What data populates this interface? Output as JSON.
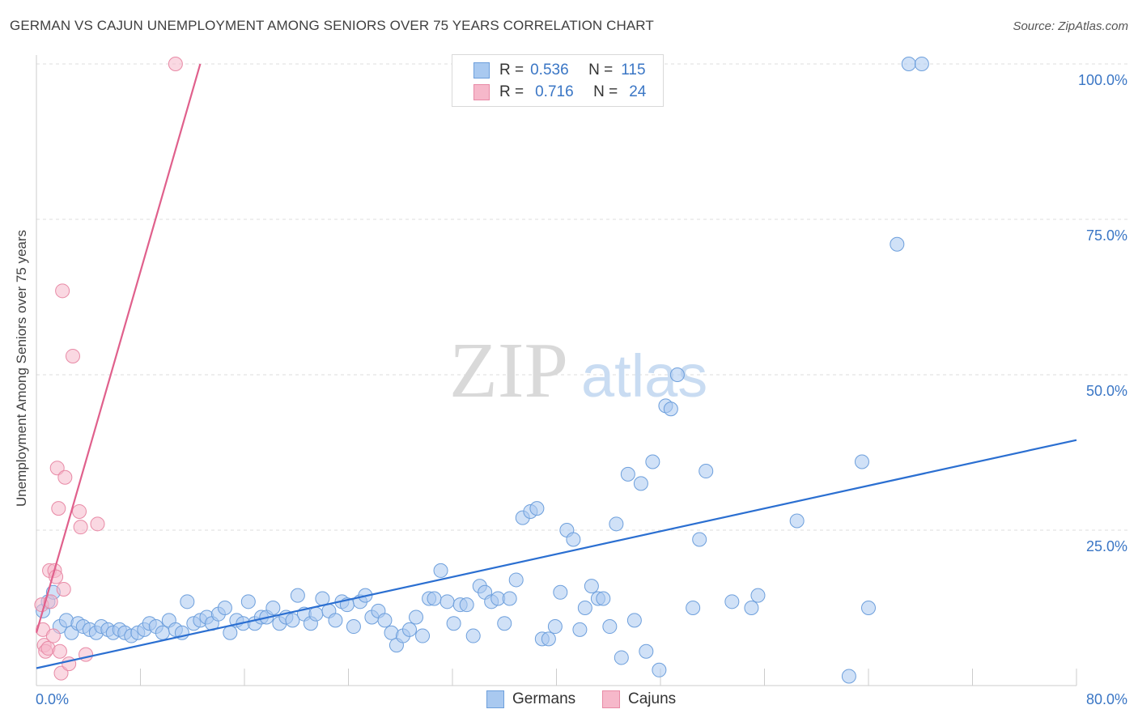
{
  "title": "GERMAN VS CAJUN UNEMPLOYMENT AMONG SENIORS OVER 75 YEARS CORRELATION CHART",
  "source": "Source: ZipAtlas.com",
  "watermark": {
    "zip": "ZIP",
    "atlas": "atlas"
  },
  "legend": {
    "germans": {
      "r_label": "R =",
      "r": "0.536",
      "n_label": "N =",
      "n": "115",
      "name": "Germans"
    },
    "cajuns": {
      "r_label": "R =",
      "r": "0.716",
      "n_label": "N =",
      "n": "24",
      "name": "Cajuns"
    }
  },
  "colors": {
    "germans_fill": "#a9c9f0",
    "germans_stroke": "#6d9fdc",
    "germans_line": "#2b6fd1",
    "cajuns_fill": "#f6b8ca",
    "cajuns_stroke": "#e88aa6",
    "cajuns_line": "#e0608c",
    "tick_label": "#3a76c5",
    "grid": "#dddddd"
  },
  "chart_data": {
    "type": "scatter",
    "title": "GERMAN VS CAJUN UNEMPLOYMENT AMONG SENIORS OVER 75 YEARS CORRELATION CHART",
    "xlabel": "",
    "ylabel": "Unemployment Among Seniors over 75 years",
    "xlim": [
      0,
      80
    ],
    "ylim": [
      0,
      100
    ],
    "x_tick_labels": [
      {
        "value": 0,
        "label": "0.0%"
      },
      {
        "value": 80,
        "label": "80.0%"
      }
    ],
    "y_tick_labels": [
      {
        "value": 25,
        "label": "25.0%"
      },
      {
        "value": 50,
        "label": "50.0%"
      },
      {
        "value": 75,
        "label": "75.0%"
      },
      {
        "value": 100,
        "label": "100.0%"
      }
    ],
    "x_minor_ticks": [
      8,
      16,
      24,
      32,
      40,
      48,
      56,
      64,
      72,
      80
    ],
    "series": [
      {
        "name": "Germans",
        "trend": [
          [
            0,
            2.8
          ],
          [
            80,
            39.5
          ]
        ],
        "points": [
          [
            0.5,
            12
          ],
          [
            0.9,
            13.5
          ],
          [
            1.3,
            15
          ],
          [
            1.8,
            9.5
          ],
          [
            2.3,
            10.5
          ],
          [
            2.7,
            8.5
          ],
          [
            3.2,
            10
          ],
          [
            3.6,
            9.5
          ],
          [
            4.1,
            9
          ],
          [
            4.6,
            8.5
          ],
          [
            5.0,
            9.5
          ],
          [
            5.5,
            9
          ],
          [
            5.9,
            8.5
          ],
          [
            6.4,
            9
          ],
          [
            6.8,
            8.5
          ],
          [
            7.3,
            8
          ],
          [
            7.8,
            8.5
          ],
          [
            8.3,
            9
          ],
          [
            8.7,
            10
          ],
          [
            9.2,
            9.5
          ],
          [
            9.7,
            8.5
          ],
          [
            10.2,
            10.5
          ],
          [
            10.7,
            9
          ],
          [
            11.2,
            8.5
          ],
          [
            11.6,
            13.5
          ],
          [
            12.1,
            10
          ],
          [
            12.6,
            10.5
          ],
          [
            13.1,
            11
          ],
          [
            13.5,
            10
          ],
          [
            14.0,
            11.5
          ],
          [
            14.5,
            12.5
          ],
          [
            14.9,
            8.5
          ],
          [
            15.4,
            10.5
          ],
          [
            15.9,
            10
          ],
          [
            16.3,
            13.5
          ],
          [
            16.8,
            10
          ],
          [
            17.3,
            11
          ],
          [
            17.7,
            11
          ],
          [
            18.2,
            12.5
          ],
          [
            18.7,
            10
          ],
          [
            19.2,
            11
          ],
          [
            19.7,
            10.5
          ],
          [
            20.1,
            14.5
          ],
          [
            20.6,
            11.5
          ],
          [
            21.1,
            10
          ],
          [
            21.5,
            11.5
          ],
          [
            22.0,
            14
          ],
          [
            22.5,
            12
          ],
          [
            23.0,
            10.5
          ],
          [
            23.5,
            13.5
          ],
          [
            23.9,
            13
          ],
          [
            24.4,
            9.5
          ],
          [
            24.9,
            13.5
          ],
          [
            25.3,
            14.5
          ],
          [
            25.8,
            11
          ],
          [
            26.3,
            12
          ],
          [
            26.8,
            10.5
          ],
          [
            27.3,
            8.5
          ],
          [
            27.7,
            6.5
          ],
          [
            28.2,
            8
          ],
          [
            28.7,
            9
          ],
          [
            29.2,
            11
          ],
          [
            29.7,
            8
          ],
          [
            30.2,
            14
          ],
          [
            30.6,
            14
          ],
          [
            31.1,
            18.5
          ],
          [
            31.6,
            13.5
          ],
          [
            32.1,
            10
          ],
          [
            32.6,
            13
          ],
          [
            33.1,
            13
          ],
          [
            33.6,
            8
          ],
          [
            34.1,
            16
          ],
          [
            34.5,
            15
          ],
          [
            35.0,
            13.5
          ],
          [
            35.5,
            14
          ],
          [
            36.0,
            10
          ],
          [
            36.4,
            14
          ],
          [
            36.9,
            17
          ],
          [
            37.4,
            27
          ],
          [
            38.0,
            28
          ],
          [
            38.5,
            28.5
          ],
          [
            38.9,
            7.5
          ],
          [
            39.4,
            7.5
          ],
          [
            39.9,
            9.5
          ],
          [
            40.3,
            15
          ],
          [
            40.8,
            25
          ],
          [
            41.3,
            23.5
          ],
          [
            41.8,
            9
          ],
          [
            42.2,
            12.5
          ],
          [
            42.7,
            16
          ],
          [
            43.2,
            14
          ],
          [
            43.6,
            14
          ],
          [
            44.1,
            9.5
          ],
          [
            44.6,
            26
          ],
          [
            45.0,
            4.5
          ],
          [
            45.5,
            34
          ],
          [
            46.0,
            10.5
          ],
          [
            46.5,
            32.5
          ],
          [
            46.9,
            5.5
          ],
          [
            47.4,
            36
          ],
          [
            47.9,
            2.5
          ],
          [
            48.4,
            45
          ],
          [
            48.8,
            44.5
          ],
          [
            49.3,
            50
          ],
          [
            50.5,
            12.5
          ],
          [
            51.0,
            23.5
          ],
          [
            51.5,
            34.5
          ],
          [
            53.5,
            13.5
          ],
          [
            55.0,
            12.5
          ],
          [
            55.5,
            14.5
          ],
          [
            58.5,
            26.5
          ],
          [
            62.5,
            1.5
          ],
          [
            63.5,
            36
          ],
          [
            64.0,
            12.5
          ],
          [
            66.2,
            71
          ],
          [
            67.1,
            100
          ],
          [
            68.1,
            100
          ]
        ]
      },
      {
        "name": "Cajuns",
        "trend": [
          [
            0,
            8.5
          ],
          [
            12.6,
            100
          ]
        ],
        "points": [
          [
            0.4,
            13
          ],
          [
            0.5,
            9
          ],
          [
            0.6,
            6.5
          ],
          [
            0.7,
            5.5
          ],
          [
            0.9,
            6
          ],
          [
            1.0,
            18.5
          ],
          [
            1.1,
            13.5
          ],
          [
            1.3,
            8
          ],
          [
            1.4,
            18.5
          ],
          [
            1.5,
            17.5
          ],
          [
            1.6,
            35
          ],
          [
            1.7,
            28.5
          ],
          [
            1.8,
            5.5
          ],
          [
            1.9,
            2
          ],
          [
            2.0,
            63.5
          ],
          [
            2.1,
            15.5
          ],
          [
            2.2,
            33.5
          ],
          [
            2.5,
            3.5
          ],
          [
            2.8,
            53
          ],
          [
            3.3,
            28
          ],
          [
            3.4,
            25.5
          ],
          [
            3.8,
            5
          ],
          [
            4.7,
            26
          ],
          [
            10.7,
            100
          ]
        ]
      }
    ]
  }
}
